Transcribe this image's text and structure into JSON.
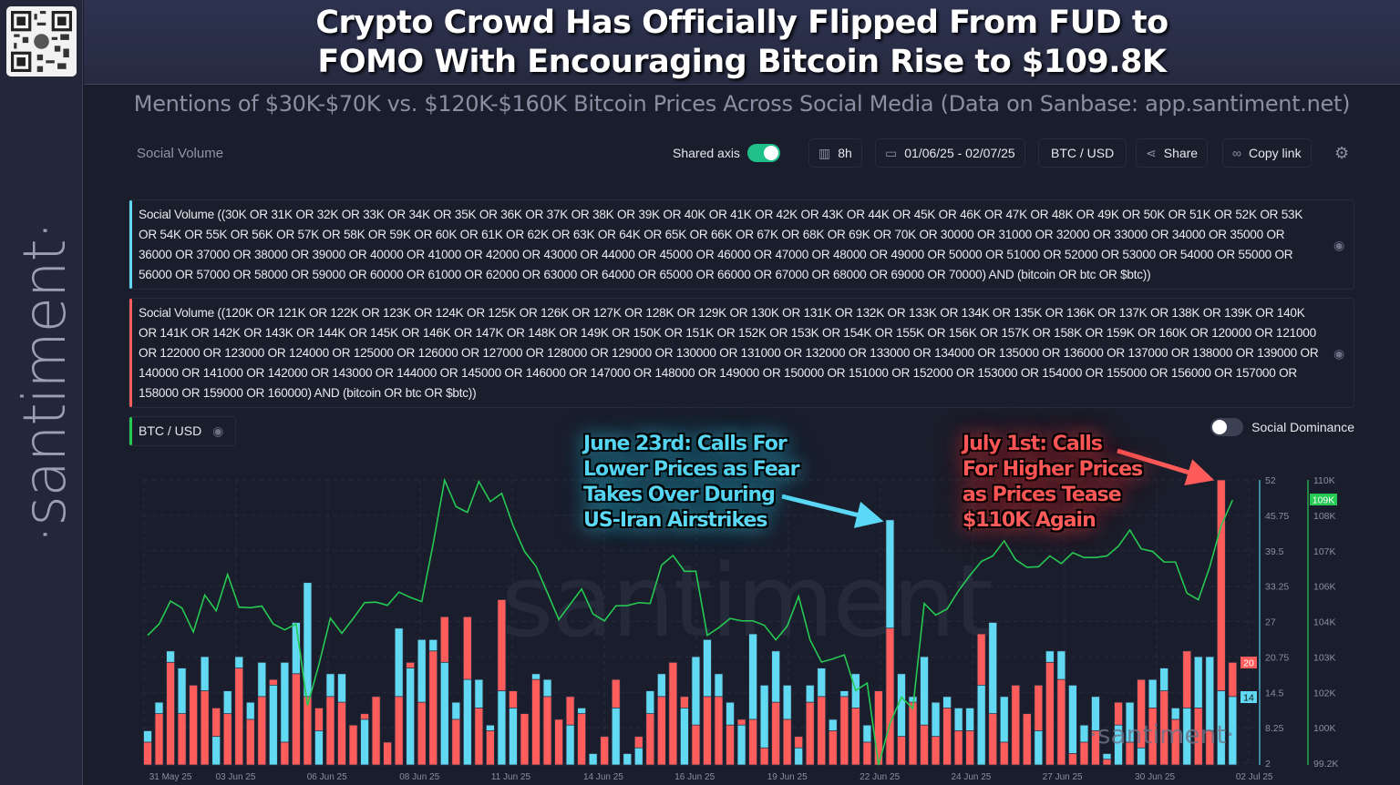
{
  "sidebar": {
    "brand": "·santiment·",
    "qr_icon": "qr-code-icon"
  },
  "header": {
    "title_line1": "Crypto Crowd Has Officially Flipped From FUD to",
    "title_line2": "FOMO With Encouraging Bitcoin Rise to $109.8K",
    "subtitle": "Mentions of $30K-$70K vs. $120K-$160K Bitcoin Prices Across Social Media (Data on Sanbase: app.santiment.net)"
  },
  "toolbar": {
    "metric_label": "Social Volume",
    "shared_axis_label": "Shared axis",
    "shared_axis_on": true,
    "interval": "8h",
    "date_range": "01/06/25 - 02/07/25",
    "pair": "BTC / USD",
    "share": "Share",
    "copy_link": "Copy link"
  },
  "legend": {
    "query_cyan": "Social Volume ((30K OR 31K OR 32K OR 33K OR 34K OR 35K OR 36K OR 37K OR 38K OR 39K OR 40K OR 41K OR 42K OR 43K OR 44K OR 45K OR 46K OR 47K OR 48K OR 49K OR 50K OR 51K OR 52K OR 53K OR 54K OR 55K OR 56K OR 57K OR 58K OR 59K OR 60K OR 61K OR 62K OR 63K OR 64K OR 65K OR 66K OR 67K OR 68K OR 69K OR 70K OR 30000 OR 31000 OR 32000 OR 33000 OR 34000 OR 35000 OR 36000 OR 37000 OR 38000 OR 39000 OR 40000 OR 41000 OR 42000 OR 43000 OR 44000 OR 45000 OR 46000 OR 47000 OR 48000 OR 49000 OR 50000 OR 51000 OR 52000 OR 53000 OR 54000 OR 55000 OR 56000 OR 57000 OR 58000 OR 59000 OR 60000 OR 61000 OR 62000 OR 63000 OR 64000 OR 65000 OR 66000 OR 67000 OR 68000 OR 69000 OR 70000) AND (bitcoin OR btc OR $btc))",
    "query_red": "Social Volume ((120K OR 121K OR 122K OR 123K OR 124K OR 125K OR 126K OR 127K OR 128K OR 129K OR 130K OR 131K OR 132K OR 133K OR 134K OR 135K OR 136K OR 137K OR 138K OR 139K OR 140K OR 141K OR 142K OR 143K OR 144K OR 145K OR 146K OR 147K OR 148K OR 149K OR 150K OR 151K OR 152K OR 153K OR 154K OR 155K OR 156K OR 157K OR 158K OR 159K OR 160K OR 120000 OR 121000 OR 122000 OR 123000 OR 124000 OR 125000 OR 126000 OR 127000 OR 128000 OR 129000 OR 130000 OR 131000 OR 132000 OR 133000 OR 134000 OR 135000 OR 136000 OR 137000 OR 138000 OR 139000 OR 140000 OR 141000 OR 142000 OR 143000 OR 144000 OR 145000 OR 146000 OR 147000 OR 148000 OR 149000 OR 150000 OR 151000 OR 152000 OR 153000 OR 154000 OR 155000 OR 156000 OR 157000 OR 158000 OR 159000 OR 160000) AND (bitcoin OR btc OR $btc))",
    "btc": "BTC / USD",
    "social_dominance": "Social Dominance",
    "social_dominance_on": false
  },
  "annotations": {
    "cyan": [
      "June 23rd: Calls For",
      "Lower Prices as Fear",
      "Takes Over During",
      "US-Iran Airstrikes"
    ],
    "red": [
      "July 1st: Calls",
      "For Higher Prices",
      "as Prices Tease",
      "$110K Again"
    ]
  },
  "watermark": "·santiment·",
  "watermark_center": "santiment",
  "colors": {
    "cyan": "#62d9f3",
    "red": "#ff5c5c",
    "green": "#26c953",
    "background": "#1a1d2b"
  },
  "chart_data": {
    "type": "bar+line",
    "interval": "8h",
    "x_ticks": [
      {
        "label": "31 May 25",
        "index": 2
      },
      {
        "label": "03 Jun 25",
        "index": 7.7
      },
      {
        "label": "06 Jun 25",
        "index": 15.7
      },
      {
        "label": "08 Jun 25",
        "index": 23.8
      },
      {
        "label": "11 Jun 25",
        "index": 31.8
      },
      {
        "label": "14 Jun 25",
        "index": 39.9
      },
      {
        "label": "16 Jun 25",
        "index": 47.9
      },
      {
        "label": "19 Jun 25",
        "index": 56
      },
      {
        "label": "22 Jun 25",
        "index": 64.1
      },
      {
        "label": "24 Jun 25",
        "index": 72.1
      },
      {
        "label": "27 Jun 25",
        "index": 80.1
      },
      {
        "label": "30 Jun 25",
        "index": 88.2
      },
      {
        "label": "02 Jul 25",
        "index": 96.9
      }
    ],
    "y_left": {
      "ticks": [
        "52",
        "45.75",
        "39.5",
        "33.25",
        "27",
        "20.75",
        "14.5",
        "8.25",
        "2"
      ],
      "range": [
        2,
        52
      ]
    },
    "y_right": {
      "ticks": [
        "110K",
        "108K",
        "107K",
        "106K",
        "104K",
        "103K",
        "102K",
        "100K",
        "99.2K"
      ],
      "range": [
        99.2,
        110
      ]
    },
    "last_value_badges": {
      "cyan": "14",
      "red": "20",
      "price": "109K"
    },
    "series": [
      {
        "name": "Social Volume ($30K-$70K)",
        "type": "bar",
        "color": "#62d9f3",
        "values": [
          8,
          13,
          22,
          19,
          0,
          21,
          7,
          15,
          21,
          13,
          20,
          16,
          20,
          27,
          34,
          8,
          18,
          18,
          0,
          10,
          0,
          0,
          26,
          19,
          24,
          24,
          20,
          13,
          17,
          17,
          9,
          15,
          12,
          0,
          18,
          17,
          0,
          9,
          12,
          4,
          0,
          12,
          4,
          5,
          15,
          18,
          0,
          12,
          21,
          24,
          18,
          13,
          9,
          25,
          16,
          22,
          16,
          5,
          16,
          19,
          10,
          15,
          18,
          9,
          0,
          45,
          18,
          14,
          21,
          13,
          14,
          12,
          12,
          16,
          27,
          14,
          0,
          0,
          8,
          22,
          22,
          16,
          9,
          14,
          4,
          9,
          13,
          5,
          17,
          19,
          12,
          12,
          21,
          21,
          15,
          14
        ]
      },
      {
        "name": "Social Volume ($120K-$160K)",
        "type": "bar",
        "color": "#ff5c5c",
        "values": [
          6,
          11,
          20,
          11,
          16,
          15,
          12,
          11,
          19,
          10,
          14,
          17,
          6,
          18,
          14,
          12,
          14,
          13,
          9,
          11,
          14,
          6,
          14,
          20,
          13,
          22,
          28,
          10,
          28,
          12,
          8,
          31,
          15,
          11,
          17,
          14,
          10,
          14,
          11,
          0,
          7,
          17,
          0,
          7,
          11,
          14,
          20,
          14,
          9,
          14,
          14,
          9,
          10,
          10,
          5,
          13,
          10,
          7,
          13,
          14,
          8,
          14,
          12,
          6,
          15,
          26,
          7,
          13,
          9,
          7,
          12,
          8,
          8,
          25,
          11,
          6,
          16,
          11,
          16,
          20,
          17,
          4,
          6,
          8,
          3,
          13,
          6,
          17,
          12,
          15,
          10,
          22,
          12,
          8,
          52,
          20
        ]
      },
      {
        "name": "BTC / USD",
        "type": "line",
        "color": "#26c953",
        "unit": "K USD",
        "values": [
          104.11,
          104.54,
          105.41,
          105.15,
          104.24,
          105.64,
          105.04,
          106.42,
          105.18,
          105.16,
          105.22,
          104.54,
          104.32,
          104.54,
          101.45,
          103.01,
          104.76,
          104.19,
          104.75,
          105.35,
          105.37,
          105.25,
          105.75,
          105.55,
          105.39,
          107.58,
          109.99,
          108.99,
          108.77,
          109.94,
          109.18,
          109.49,
          108.27,
          107.29,
          106.73,
          105.73,
          104.71,
          105.29,
          105.87,
          104.92,
          104.66,
          105.23,
          105.24,
          105.35,
          105.32,
          106.77,
          107.14,
          106.54,
          106.54,
          104.11,
          104.4,
          104.75,
          104.66,
          104.66,
          104.49,
          103.94,
          104.46,
          105.59,
          103.94,
          103.1,
          103.22,
          103.37,
          102.02,
          102.3,
          99.2,
          100.77,
          101.77,
          101.34,
          105.32,
          104.88,
          105.11,
          105.8,
          106.38,
          106.91,
          107.12,
          107.69,
          106.98,
          106.69,
          106.71,
          107.12,
          106.83,
          107.24,
          107.06,
          107.06,
          107.12,
          107.49,
          108.1,
          107.39,
          107.29,
          106.89,
          106.89,
          105.71,
          105.46,
          106.71,
          108.27,
          109.24
        ]
      }
    ],
    "grid": true
  }
}
